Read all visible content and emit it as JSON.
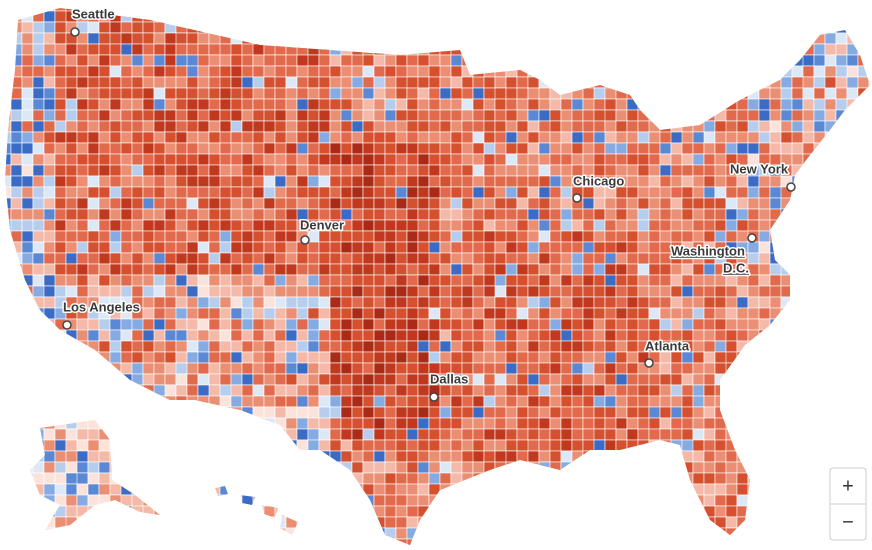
{
  "map": {
    "cities": [
      {
        "lines": [
          "Seattle"
        ]
      },
      {
        "lines": [
          "Denver"
        ]
      },
      {
        "lines": [
          "Chicago"
        ]
      },
      {
        "lines": [
          "New York"
        ]
      },
      {
        "lines": [
          "Washington",
          "D.C."
        ]
      },
      {
        "lines": [
          "Los Angeles"
        ]
      },
      {
        "lines": [
          "Dallas"
        ]
      },
      {
        "lines": [
          "Atlanta"
        ]
      }
    ],
    "zoom": {
      "in": "+",
      "out": "−"
    }
  }
}
